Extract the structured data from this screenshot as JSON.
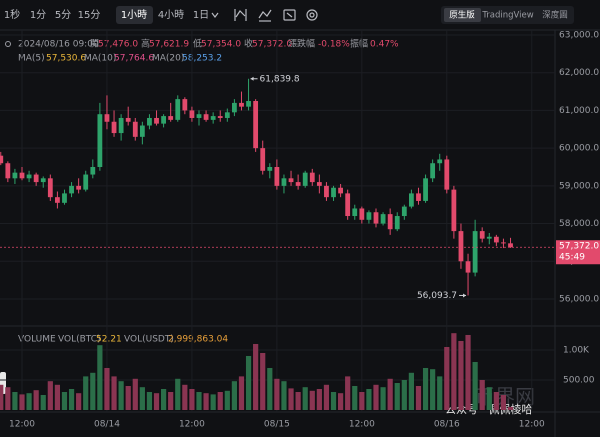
{
  "toolbar": {
    "intervals": [
      "1秒",
      "1分",
      "5分",
      "15分",
      "1小時",
      "4小時",
      "1日"
    ],
    "active_interval": 4,
    "views": [
      "原生版",
      "TradingView",
      "深度圖"
    ],
    "active_view": 0
  },
  "chart_data": {
    "type": "candlestick",
    "info": {
      "date": "2024/08/16 09:00",
      "fields": [
        {
          "label": "開",
          "value": "57,476.0"
        },
        {
          "label": "高",
          "value": "57,621.9"
        },
        {
          "label": "低",
          "value": "57,354.0"
        },
        {
          "label": "收",
          "value": "57,372.0"
        },
        {
          "label": "漲跌幅",
          "value": "-0.18%"
        },
        {
          "label": "振幅",
          "value": "0.47%"
        }
      ]
    },
    "ma": [
      {
        "name": "MA(5)",
        "value": "57,530.6",
        "color": "#e8b53a"
      },
      {
        "name": "MA(10)",
        "value": "57,764.6",
        "color": "#e0508a"
      },
      {
        "name": "MA(20)",
        "value": "58,253.2",
        "color": "#5aa0e8"
      }
    ],
    "categories": [
      null,
      null,
      null,
      "12:00",
      null,
      null,
      null,
      null,
      null,
      null,
      null,
      null,
      null,
      null,
      null,
      "08/14",
      null,
      null,
      null,
      null,
      null,
      null,
      null,
      null,
      null,
      null,
      null,
      "12:00",
      null,
      null,
      null,
      null,
      null,
      null,
      null,
      null,
      null,
      null,
      null,
      "08/15",
      null,
      null,
      null,
      null,
      null,
      null,
      null,
      null,
      null,
      null,
      null,
      "12:00",
      null,
      null,
      null,
      null,
      null,
      null,
      null,
      null,
      null,
      null,
      null,
      "08/16",
      null,
      null,
      null,
      null,
      null,
      null,
      null,
      null,
      null,
      null,
      null,
      "12:00"
    ],
    "open": [
      59800,
      59600,
      59200,
      59350,
      59200,
      59300,
      59100,
      59200,
      58700,
      58550,
      58800,
      59000,
      58900,
      59300,
      59500,
      60900,
      60700,
      60400,
      60800,
      60700,
      60300,
      60600,
      60800,
      60650,
      60850,
      60750,
      61300,
      61000,
      60800,
      60900,
      60750,
      60850,
      60800,
      60950,
      61200,
      61100,
      61250,
      60000,
      59400,
      59500,
      59000,
      59200,
      59100,
      59000,
      59350,
      59100,
      59000,
      58700,
      58950,
      58800,
      58200,
      58400,
      58100,
      58300,
      58000,
      58250,
      57850,
      58200,
      58450,
      58800,
      58600,
      59200,
      59600,
      59700,
      58900,
      57800,
      57000,
      56700,
      57800,
      57600,
      57650,
      57500,
      57476,
      null,
      null,
      null
    ],
    "high": [
      59900,
      59650,
      59450,
      59500,
      59400,
      59350,
      59250,
      59300,
      58850,
      58900,
      59100,
      59200,
      59400,
      59700,
      61200,
      61400,
      61000,
      60900,
      61100,
      60800,
      60700,
      60900,
      61000,
      60900,
      61200,
      61400,
      61350,
      61100,
      61000,
      61000,
      60950,
      61000,
      61050,
      61300,
      61500,
      61839.8,
      61300,
      60200,
      59600,
      59700,
      59300,
      59400,
      59300,
      59400,
      59450,
      59300,
      59100,
      59000,
      59050,
      58900,
      58500,
      58450,
      58350,
      58400,
      58300,
      58400,
      58300,
      58500,
      58900,
      58950,
      59300,
      59700,
      59850,
      59800,
      59000,
      58000,
      57200,
      58100,
      57900,
      57750,
      57700,
      57600,
      57621.9,
      null,
      null,
      null
    ],
    "low": [
      59550,
      59100,
      59050,
      59150,
      59100,
      59000,
      58950,
      58600,
      58400,
      58500,
      58700,
      58800,
      58850,
      59200,
      59400,
      60500,
      60300,
      60200,
      60600,
      60200,
      60100,
      60500,
      60600,
      60550,
      60700,
      60700,
      60900,
      60700,
      60600,
      60700,
      60650,
      60700,
      60700,
      60850,
      61000,
      61000,
      59900,
      59300,
      59200,
      58900,
      58800,
      59000,
      58900,
      58950,
      59000,
      58800,
      58600,
      58600,
      58700,
      58100,
      58100,
      58000,
      58000,
      57900,
      57950,
      57700,
      57800,
      58100,
      58400,
      58500,
      58550,
      59100,
      59400,
      58800,
      57600,
      56800,
      56093.7,
      56600,
      57500,
      57450,
      57400,
      57350,
      57354,
      null,
      null,
      null
    ],
    "close": [
      59600,
      59200,
      59350,
      59200,
      59300,
      59100,
      59200,
      58700,
      58550,
      58800,
      59000,
      58900,
      59300,
      59500,
      60900,
      60700,
      60400,
      60800,
      60700,
      60300,
      60600,
      60800,
      60650,
      60850,
      60750,
      61300,
      61000,
      60800,
      60900,
      60750,
      60850,
      60800,
      60950,
      61200,
      61100,
      61250,
      60000,
      59400,
      59500,
      59000,
      59200,
      59100,
      59000,
      59350,
      59100,
      59000,
      58700,
      58950,
      58800,
      58200,
      58400,
      58100,
      58300,
      58000,
      58250,
      57850,
      58200,
      58450,
      58800,
      58600,
      59200,
      59600,
      59700,
      58900,
      57800,
      57000,
      56700,
      57800,
      57600,
      57650,
      57500,
      57476,
      57372,
      null,
      null,
      null
    ],
    "volume": [
      420,
      380,
      300,
      260,
      280,
      330,
      250,
      480,
      420,
      300,
      350,
      280,
      560,
      620,
      1080,
      700,
      560,
      480,
      400,
      520,
      380,
      300,
      280,
      350,
      300,
      520,
      420,
      350,
      300,
      280,
      260,
      300,
      320,
      480,
      560,
      900,
      1100,
      950,
      700,
      520,
      480,
      360,
      300,
      380,
      320,
      350,
      420,
      300,
      280,
      560,
      400,
      300,
      350,
      420,
      380,
      520,
      450,
      500,
      620,
      400,
      700,
      680,
      560,
      1050,
      1280,
      1150,
      1250,
      800,
      500,
      380,
      300,
      250,
      52.21,
      null,
      null,
      null
    ],
    "up_color": "#2ea46b",
    "down_color": "#e24a6c",
    "volume_up_color": "#2b6e49",
    "volume_down_color": "#8a3552",
    "ylim": [
      55310,
      63080
    ],
    "yticks": [
      {
        "value": 56000,
        "label": "56,000.0"
      },
      {
        "value": 57000,
        "label": "57,000.0"
      },
      {
        "value": 58000,
        "label": "58,000.0"
      },
      {
        "value": 59000,
        "label": "59,000.0"
      },
      {
        "value": 60000,
        "label": "60,000.0"
      },
      {
        "value": 61000,
        "label": "61,000.0"
      },
      {
        "value": 62000,
        "label": "62,000.0"
      },
      {
        "value": 63000,
        "label": "63,000.0"
      }
    ],
    "grid": true,
    "high_label": "61,839.8",
    "low_label": "56,093.7",
    "last_price_label": "57,372.0",
    "countdown": "45:49",
    "volume_header": {
      "title": "VOLUME",
      "base_name": "VOL(BTC)",
      "base_value": "52.21",
      "quote_name": "VOL(USDT)",
      "quote_value": "2,999,863.04"
    },
    "volume_ylim": [
      0,
      1333
    ],
    "volume_yticks": [
      {
        "value": 500,
        "label": "500.00"
      },
      {
        "value": 1000,
        "label": "1.00K"
      }
    ]
  },
  "watermark": {
    "text": "公众号 · 佩佩棱哈",
    "logo": "币界网"
  }
}
